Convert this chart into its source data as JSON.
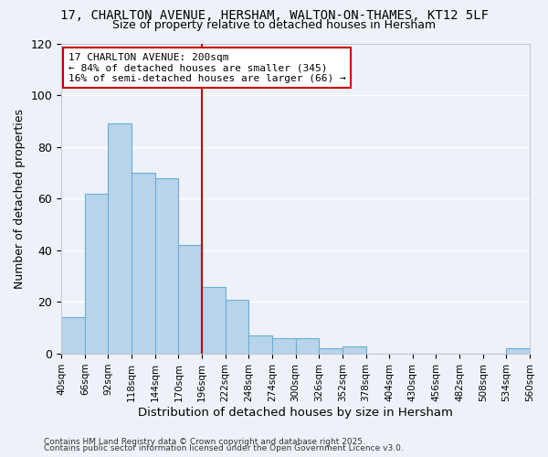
{
  "title": "17, CHARLTON AVENUE, HERSHAM, WALTON-ON-THAMES, KT12 5LF",
  "subtitle": "Size of property relative to detached houses in Hersham",
  "xlabel": "Distribution of detached houses by size in Hersham",
  "ylabel": "Number of detached properties",
  "bar_edges": [
    40,
    66,
    92,
    118,
    144,
    170,
    196,
    222,
    248,
    274,
    300,
    326,
    352,
    378,
    404,
    430,
    456,
    482,
    508,
    534,
    560
  ],
  "bar_heights": [
    14,
    62,
    89,
    70,
    68,
    42,
    26,
    21,
    7,
    6,
    6,
    2,
    3,
    0,
    0,
    0,
    0,
    0,
    0,
    2
  ],
  "bar_color": "#b8d4ea",
  "bar_edge_color": "#6aaed6",
  "vline_x": 196,
  "vline_color": "#cc0000",
  "ylim": [
    0,
    120
  ],
  "yticks": [
    0,
    20,
    40,
    60,
    80,
    100,
    120
  ],
  "annotation_title": "17 CHARLTON AVENUE: 200sqm",
  "annotation_line1": "← 84% of detached houses are smaller (345)",
  "annotation_line2": "16% of semi-detached houses are larger (66) →",
  "annotation_box_color": "#ffffff",
  "annotation_box_edge": "#cc0000",
  "footer1": "Contains HM Land Registry data © Crown copyright and database right 2025.",
  "footer2": "Contains public sector information licensed under the Open Government Licence v3.0.",
  "background_color": "#eef2f8",
  "grid_color": "#ffffff",
  "tick_label_fontsize": 7.5,
  "ylabel_fontsize": 9,
  "xlabel_fontsize": 9.5,
  "title_fontsize": 10,
  "subtitle_fontsize": 9,
  "annotation_fontsize": 8,
  "footer_fontsize": 6.5
}
